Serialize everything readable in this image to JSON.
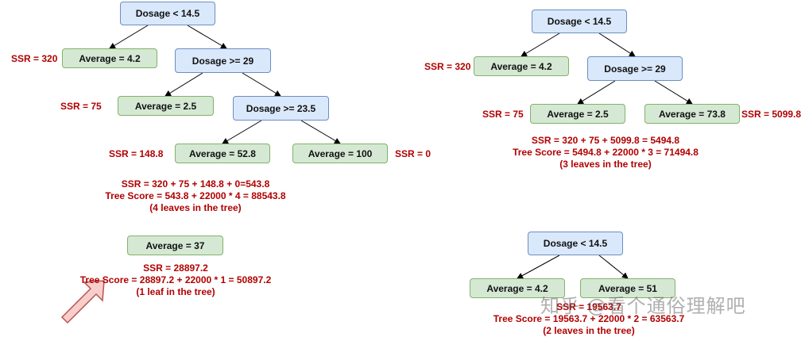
{
  "trees": {
    "four_leaf": {
      "root": "Dosage < 14.5",
      "split2": "Dosage >= 29",
      "split3": "Dosage >= 23.5",
      "leaf1": "Average = 4.2",
      "leaf2": "Average = 2.5",
      "leaf3": "Average = 52.8",
      "leaf4": "Average = 100",
      "ssr_leaf1": "SSR = 320",
      "ssr_leaf2": "SSR = 75",
      "ssr_leaf3": "SSR = 148.8",
      "ssr_leaf4": "SSR = 0",
      "note_ssr": "SSR = 320 + 75 + 148.8 + 0=543.8",
      "note_score": "Tree Score = 543.8 + 22000 * 4 = 88543.8",
      "note_leaves": "(4 leaves in the tree)"
    },
    "three_leaf": {
      "root": "Dosage < 14.5",
      "split2": "Dosage >= 29",
      "leaf1": "Average = 4.2",
      "leaf2": "Average = 2.5",
      "leaf3": "Average = 73.8",
      "ssr_leaf1": "SSR = 320",
      "ssr_leaf2": "SSR = 75",
      "ssr_leaf3": "SSR = 5099.8",
      "note_ssr": "SSR = 320 + 75 + 5099.8 = 5494.8",
      "note_score": "Tree Score = 5494.8 + 22000 * 3 = 71494.8",
      "note_leaves": "(3 leaves in the tree)"
    },
    "one_leaf": {
      "leaf1": "Average = 37",
      "note_ssr": "SSR = 28897.2",
      "note_score": "Tree Score = 28897.2 + 22000 * 1 = 50897.2",
      "note_leaves": "(1 leaf in the tree)"
    },
    "two_leaf": {
      "root": "Dosage < 14.5",
      "leaf1": "Average = 4.2",
      "leaf2": "Average = 51",
      "note_ssr": "SSR = 19563.7",
      "note_score": "Tree Score = 19563.7 + 22000 * 2 = 63563.7",
      "note_leaves": "(2 leaves in the tree)"
    }
  },
  "watermark": "知乎 @看个通俗理解吧",
  "colors": {
    "split_fill": "#dae8fc",
    "split_border": "#6c8ebf",
    "leaf_fill": "#d5e8d4",
    "leaf_border": "#82b366",
    "annotation": "#b20000",
    "arrow_fill": "#f8cecc",
    "arrow_border": "#b85450"
  }
}
